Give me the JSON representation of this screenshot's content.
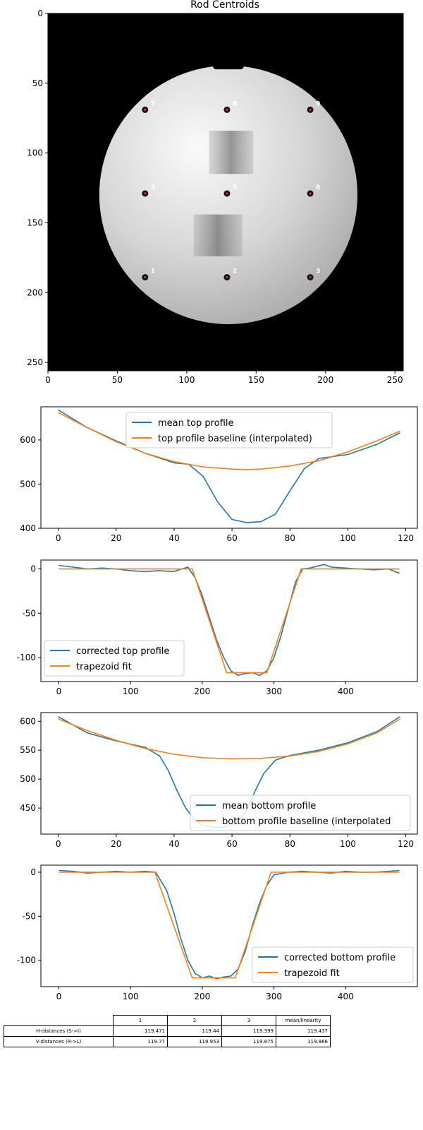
{
  "colors": {
    "series1": "#1f77b4",
    "series2": "#ff7f0e",
    "marker_fill": "#d62728",
    "marker_edge": "#000000",
    "label_text": "#ffffff"
  },
  "chart_data": [
    {
      "type": "image",
      "title": "Rod Centroids",
      "xlim": [
        0,
        256
      ],
      "ylim": [
        256,
        0
      ],
      "xticks": [
        0,
        50,
        100,
        150,
        200,
        250
      ],
      "yticks": [
        0,
        50,
        100,
        150,
        200,
        250
      ],
      "phantom": {
        "center": [
          130,
          130
        ],
        "radius": 93
      },
      "points": [
        {
          "label": "1",
          "x": 70,
          "y": 189
        },
        {
          "label": "2",
          "x": 129,
          "y": 189
        },
        {
          "label": "3",
          "x": 189,
          "y": 189
        },
        {
          "label": "4",
          "x": 70,
          "y": 129
        },
        {
          "label": "5",
          "x": 129,
          "y": 129
        },
        {
          "label": "6",
          "x": 189,
          "y": 129
        },
        {
          "label": "7",
          "x": 70,
          "y": 69
        },
        {
          "label": "8",
          "x": 129,
          "y": 69
        },
        {
          "label": "9",
          "x": 189,
          "y": 69
        }
      ]
    },
    {
      "type": "line",
      "xlim": [
        -6,
        124
      ],
      "ylim": [
        400,
        675
      ],
      "xticks": [
        0,
        20,
        40,
        60,
        80,
        100,
        120
      ],
      "yticks": [
        400,
        500,
        600
      ],
      "legend_position": "upper center",
      "series": [
        {
          "name": "mean top profile",
          "x": [
            0,
            10,
            20,
            30,
            40,
            45,
            50,
            55,
            60,
            65,
            70,
            75,
            80,
            85,
            90,
            100,
            110,
            118
          ],
          "y": [
            668,
            628,
            598,
            570,
            548,
            545,
            518,
            460,
            420,
            413,
            415,
            432,
            485,
            535,
            558,
            567,
            590,
            616
          ]
        },
        {
          "name": "top profile baseline (interpolated)",
          "x": [
            0,
            10,
            20,
            30,
            40,
            50,
            60,
            65,
            70,
            80,
            90,
            100,
            110,
            118
          ],
          "y": [
            662,
            628,
            596,
            570,
            551,
            539,
            534,
            533,
            534,
            541,
            553,
            573,
            598,
            620
          ]
        }
      ]
    },
    {
      "type": "line",
      "xlim": [
        -25,
        500
      ],
      "ylim": [
        -127,
        10
      ],
      "xticks": [
        0,
        100,
        200,
        300,
        400
      ],
      "yticks": [
        -100,
        -50,
        0
      ],
      "legend_position": "lower left",
      "series": [
        {
          "name": "corrected top profile",
          "x": [
            0,
            20,
            40,
            60,
            80,
            100,
            120,
            140,
            160,
            180,
            190,
            200,
            210,
            220,
            230,
            240,
            250,
            260,
            270,
            280,
            290,
            300,
            310,
            320,
            330,
            340,
            350,
            360,
            370,
            380,
            400,
            420,
            440,
            460,
            475
          ],
          "y": [
            4,
            2,
            0,
            1,
            0,
            -2,
            -3,
            -2,
            -3,
            2,
            -10,
            -30,
            -55,
            -80,
            -100,
            -115,
            -120,
            -118,
            -117,
            -120,
            -115,
            -100,
            -75,
            -45,
            -15,
            0,
            1,
            3,
            5,
            2,
            1,
            0,
            -1,
            0,
            -5
          ]
        },
        {
          "name": "trapezoid fit",
          "x": [
            0,
            186,
            234,
            290,
            338,
            475
          ],
          "y": [
            0,
            0,
            -117,
            -117,
            0,
            0
          ]
        }
      ]
    },
    {
      "type": "line",
      "xlim": [
        -6,
        124
      ],
      "ylim": [
        405,
        615
      ],
      "xticks": [
        0,
        20,
        40,
        60,
        80,
        100,
        120
      ],
      "yticks": [
        450,
        500,
        550,
        600
      ],
      "legend_position": "lower right",
      "series": [
        {
          "name": "mean bottom profile",
          "x": [
            0,
            10,
            20,
            30,
            35,
            38,
            41,
            44,
            47,
            50,
            53,
            56,
            59,
            62,
            65,
            68,
            71,
            75,
            80,
            90,
            100,
            110,
            118
          ],
          "y": [
            608,
            580,
            566,
            555,
            540,
            515,
            480,
            450,
            430,
            420,
            418,
            416,
            419,
            425,
            445,
            480,
            510,
            533,
            541,
            550,
            563,
            582,
            608
          ]
        },
        {
          "name": "bottom profile baseline (interpolated",
          "x": [
            0,
            10,
            20,
            30,
            40,
            50,
            60,
            70,
            80,
            90,
            100,
            110,
            118
          ],
          "y": [
            604,
            584,
            567,
            553,
            543,
            537,
            535,
            536,
            540,
            548,
            561,
            580,
            604
          ]
        }
      ]
    },
    {
      "type": "line",
      "xlim": [
        -25,
        500
      ],
      "ylim": [
        -130,
        8
      ],
      "xticks": [
        0,
        100,
        200,
        300,
        400
      ],
      "yticks": [
        -100,
        -50,
        0
      ],
      "legend_position": "lower right",
      "series": [
        {
          "name": "corrected bottom profile",
          "x": [
            0,
            20,
            40,
            60,
            80,
            100,
            120,
            135,
            150,
            160,
            170,
            180,
            190,
            200,
            210,
            220,
            230,
            240,
            250,
            260,
            270,
            280,
            290,
            300,
            320,
            340,
            360,
            380,
            400,
            420,
            440,
            460,
            475
          ],
          "y": [
            2,
            1,
            -1,
            0,
            1,
            0,
            1,
            0,
            -20,
            -45,
            -75,
            -100,
            -115,
            -120,
            -118,
            -121,
            -119,
            -118,
            -110,
            -90,
            -60,
            -35,
            -15,
            -3,
            0,
            1,
            0,
            -1,
            1,
            0,
            0,
            1,
            2
          ]
        },
        {
          "name": "trapezoid fit",
          "x": [
            0,
            134,
            186,
            246,
            296,
            475
          ],
          "y": [
            0,
            0,
            -120,
            -120,
            0,
            0
          ]
        }
      ]
    }
  ],
  "table": {
    "headers": [
      "1",
      "2",
      "3",
      "mean/linearity"
    ],
    "rows": [
      {
        "label": "H-distances (S->I)",
        "values": [
          "119.471",
          "119.44",
          "119.399",
          "119.437"
        ]
      },
      {
        "label": "V-distances (R->L)",
        "values": [
          "119.77",
          "119.953",
          "119.875",
          "119.866"
        ]
      }
    ]
  }
}
